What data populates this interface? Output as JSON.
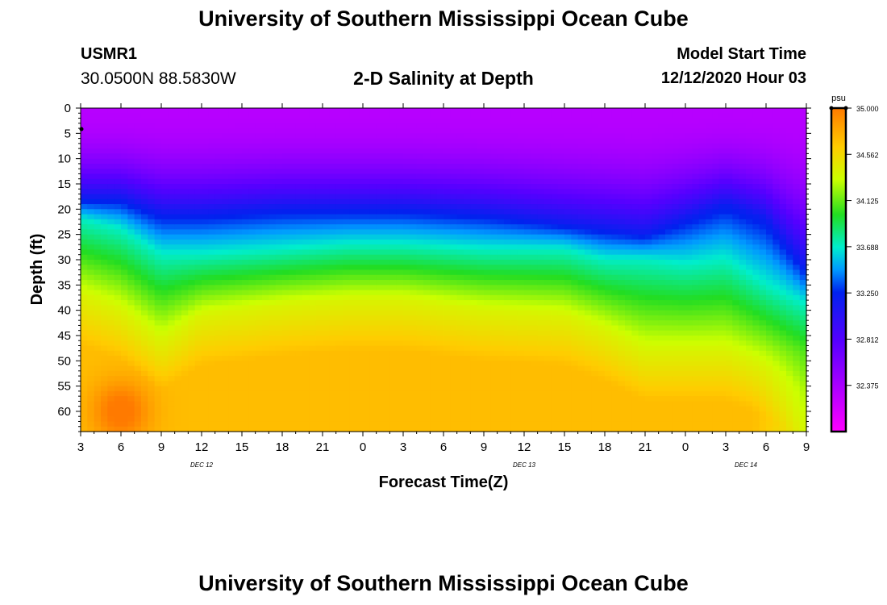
{
  "header": {
    "title": "University of Southern Mississippi Ocean Cube",
    "station": "USMR1",
    "coords": "30.0500N 88.5830W",
    "plot_title": "2-D Salinity at Depth",
    "model_start_label": "Model Start Time",
    "model_start_value": "12/12/2020 Hour 03"
  },
  "footer": {
    "title": "University of Southern Mississippi Ocean Cube"
  },
  "chart_data": {
    "type": "heatmap",
    "title": "2-D Salinity at Depth",
    "xlabel": "Forecast Time(Z)",
    "ylabel": "Depth (ft)",
    "x_ticks": [
      "3",
      "6",
      "9",
      "12",
      "15",
      "18",
      "21",
      "0",
      "3",
      "6",
      "9",
      "12",
      "15",
      "18",
      "21",
      "0",
      "3",
      "6",
      "9"
    ],
    "x_range_hours": [
      0,
      54
    ],
    "date_labels": [
      {
        "text": "DEC 12",
        "hour": 9
      },
      {
        "text": "DEC 13",
        "hour": 33
      },
      {
        "text": "DEC 14",
        "hour": 49.5
      }
    ],
    "y_ticks": [
      0,
      5,
      10,
      15,
      20,
      25,
      30,
      35,
      40,
      45,
      50,
      55,
      60
    ],
    "ylim": [
      0,
      64
    ],
    "colorbar": {
      "unit": "psu",
      "min": 31.9375,
      "max": 35.0,
      "tick_labels": [
        "35.000",
        "34.562",
        "34.125",
        "33.688",
        "33.250",
        "32.812",
        "32.375"
      ],
      "tick_values": [
        35.0,
        34.5625,
        34.125,
        33.6875,
        33.25,
        32.8125,
        32.375
      ]
    },
    "transition_depth_ft": {
      "hours": [
        0,
        3,
        6,
        9,
        15,
        20,
        24,
        30,
        36,
        39,
        42,
        45,
        48,
        51,
        54
      ],
      "d_33_2": [
        18,
        18,
        21,
        21,
        20,
        20,
        20,
        21,
        23,
        24,
        25,
        22,
        19,
        22,
        32
      ],
      "d_33_7": [
        22,
        24,
        29,
        29,
        28,
        27,
        27,
        28,
        28,
        30,
        30,
        31,
        30,
        35,
        39
      ],
      "d_34_4": [
        37,
        40,
        46,
        41,
        39,
        38,
        38,
        40,
        41,
        44,
        48,
        48,
        48,
        51,
        56
      ]
    },
    "surface_salinity": 32.3,
    "bottom_salinity": 34.7,
    "note_max": "saltiest water (~35.0 psu) near bottom at 3-9 Z Dec 12"
  }
}
